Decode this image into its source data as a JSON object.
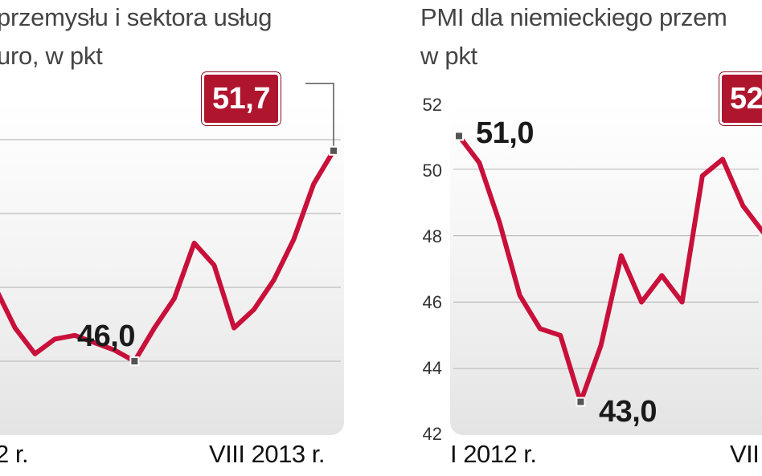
{
  "chart_data": [
    {
      "type": "line",
      "title_line1": "przemysłu i sektora usług",
      "title_line2": "uro, w pkt",
      "x_start_label": "2 r.",
      "x_end_label": "VIII 2013 r.",
      "ylim": [
        44,
        53
      ],
      "grid": true,
      "color": "#c8103a",
      "points": [
        {
          "x": 0,
          "y": 48.0
        },
        {
          "x": 1,
          "y": 46.9
        },
        {
          "x": 2,
          "y": 46.2
        },
        {
          "x": 3,
          "y": 46.6
        },
        {
          "x": 4,
          "y": 46.7
        },
        {
          "x": 5,
          "y": 46.5
        },
        {
          "x": 6,
          "y": 46.3
        },
        {
          "x": 7,
          "y": 46.0
        },
        {
          "x": 8,
          "y": 46.9
        },
        {
          "x": 9,
          "y": 47.7
        },
        {
          "x": 10,
          "y": 49.2
        },
        {
          "x": 11,
          "y": 48.6
        },
        {
          "x": 12,
          "y": 46.9
        },
        {
          "x": 13,
          "y": 47.4
        },
        {
          "x": 14,
          "y": 48.2
        },
        {
          "x": 15,
          "y": 49.3
        },
        {
          "x": 16,
          "y": 50.8
        },
        {
          "x": 17,
          "y": 51.7
        }
      ],
      "labels": {
        "min": {
          "text": "46,0",
          "index": 7
        },
        "last": {
          "text": "51,7",
          "index": 17
        }
      }
    },
    {
      "type": "line",
      "title_line1": "PMI dla niemieckiego przem",
      "title_line2": "w pkt",
      "x_start_label": "I 2012 r.",
      "x_end_label": "VII",
      "y_ticks": [
        "52",
        "50",
        "48",
        "46",
        "44",
        "42"
      ],
      "ylim": [
        42,
        52
      ],
      "grid": true,
      "color": "#c8103a",
      "points": [
        {
          "x": 0,
          "y": 51.0
        },
        {
          "x": 1,
          "y": 50.2
        },
        {
          "x": 2,
          "y": 48.4
        },
        {
          "x": 3,
          "y": 46.2
        },
        {
          "x": 4,
          "y": 45.2
        },
        {
          "x": 5,
          "y": 45.0
        },
        {
          "x": 6,
          "y": 43.0
        },
        {
          "x": 7,
          "y": 44.7
        },
        {
          "x": 8,
          "y": 47.4
        },
        {
          "x": 9,
          "y": 46.0
        },
        {
          "x": 10,
          "y": 46.8
        },
        {
          "x": 11,
          "y": 46.0
        },
        {
          "x": 12,
          "y": 49.8
        },
        {
          "x": 13,
          "y": 50.3
        },
        {
          "x": 14,
          "y": 48.9
        },
        {
          "x": 15,
          "y": 48.1
        }
      ],
      "labels": {
        "first": {
          "text": "51,0",
          "index": 0
        },
        "min": {
          "text": "43,0",
          "index": 6
        },
        "badge": {
          "text": "52"
        }
      }
    }
  ]
}
